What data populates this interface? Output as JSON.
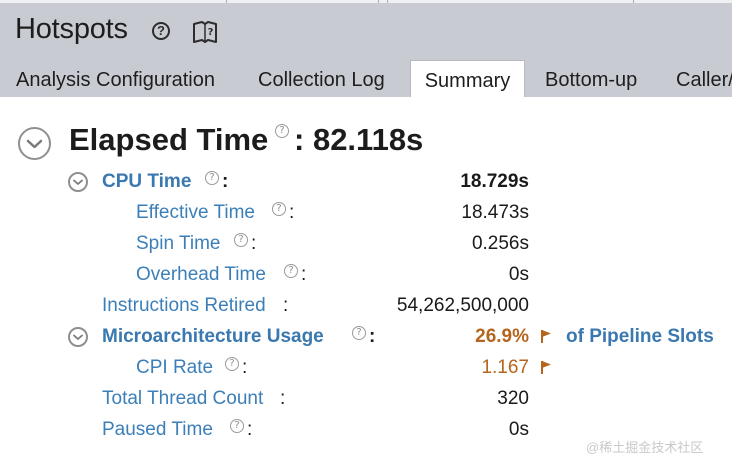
{
  "header": {
    "title": "Hotspots",
    "help_glyph": "?",
    "book_icon": "book-help-icon"
  },
  "tabs": [
    {
      "label": "Analysis Configuration",
      "active": false
    },
    {
      "label": "Collection Log",
      "active": false
    },
    {
      "label": "Summary",
      "active": true
    },
    {
      "label": "Bottom-up",
      "active": false
    },
    {
      "label": "Caller/",
      "active": false
    }
  ],
  "summary": {
    "elapsed": {
      "label": "Elapsed Time",
      "colon": ":",
      "value": "82.118s"
    },
    "help_glyph": "?",
    "cpu_time": {
      "label": "CPU Time",
      "colon": ":",
      "value": "18.729s"
    },
    "effective_time": {
      "label": "Effective Time",
      "colon": ":",
      "value": "18.473s"
    },
    "spin_time": {
      "label": "Spin Time",
      "colon": ":",
      "value": "0.256s"
    },
    "overhead_time": {
      "label": "Overhead Time",
      "colon": ":",
      "value": "0s"
    },
    "instructions_retired": {
      "label": "Instructions Retired",
      "colon": ":",
      "value": "54,262,500,000"
    },
    "microarch_usage": {
      "label": "Microarchitecture Usage",
      "colon": ":",
      "value": "26.9%",
      "suffix": "of Pipeline Slots"
    },
    "cpi_rate": {
      "label": "CPI Rate",
      "colon": ":",
      "value": "1.167"
    },
    "thread_count": {
      "label": "Total Thread Count",
      "colon": ":",
      "value": "320"
    },
    "paused_time": {
      "label": "Paused Time",
      "colon": ":",
      "value": "0s"
    }
  },
  "colors": {
    "header_bg": "#c8ccd2",
    "link_blue": "#3c7fb8",
    "warning_orange": "#b5651d"
  },
  "watermark": "@稀土掘金技术社区"
}
